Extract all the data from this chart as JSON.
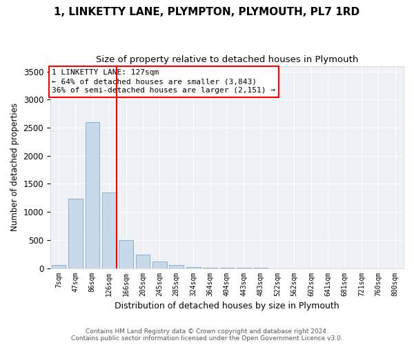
{
  "title": "1, LINKETTY LANE, PLYMPTON, PLYMOUTH, PL7 1RD",
  "subtitle": "Size of property relative to detached houses in Plymouth",
  "xlabel": "Distribution of detached houses by size in Plymouth",
  "ylabel": "Number of detached properties",
  "bar_color": "#c8d9ea",
  "bar_edge_color": "#8ab0cc",
  "background_color": "#eef2f7",
  "grid_color": "#ffffff",
  "categories": [
    "7sqm",
    "47sqm",
    "86sqm",
    "126sqm",
    "166sqm",
    "205sqm",
    "245sqm",
    "285sqm",
    "324sqm",
    "364sqm",
    "404sqm",
    "443sqm",
    "483sqm",
    "522sqm",
    "562sqm",
    "602sqm",
    "641sqm",
    "681sqm",
    "721sqm",
    "760sqm",
    "800sqm"
  ],
  "values": [
    50,
    1230,
    2600,
    1350,
    500,
    235,
    115,
    50,
    25,
    10,
    5,
    5,
    5,
    0,
    0,
    0,
    0,
    0,
    0,
    0,
    0
  ],
  "property_bin_index": 3,
  "annotation_text": "1 LINKETTY LANE: 127sqm\n← 64% of detached houses are smaller (3,843)\n36% of semi-detached houses are larger (2,151) →",
  "ylim": [
    0,
    3600
  ],
  "yticks": [
    0,
    500,
    1000,
    1500,
    2000,
    2500,
    3000,
    3500
  ],
  "footer_line1": "Contains HM Land Registry data © Crown copyright and database right 2024.",
  "footer_line2": "Contains public sector information licensed under the Open Government Licence v3.0."
}
